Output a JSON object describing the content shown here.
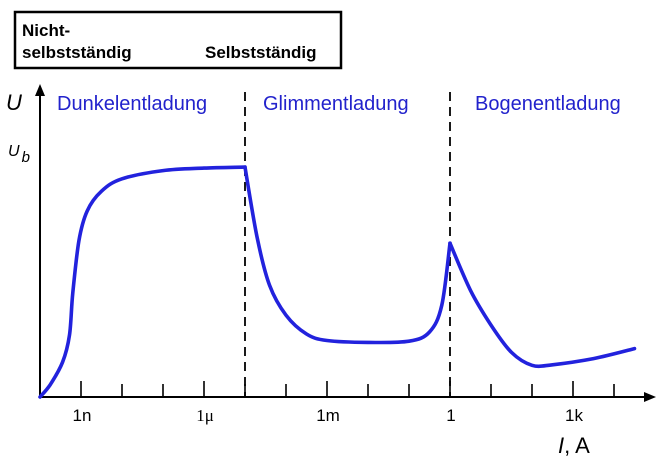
{
  "legend_box": {
    "line1": "Nicht-",
    "line2_left": "selbstständig",
    "line2_right": "Selbstständig"
  },
  "chart_data": {
    "type": "line",
    "title": "",
    "ylabel": "U",
    "xlabel_var": "I",
    "xlabel_unit": ", A",
    "y_marker_label": "U",
    "y_marker_sub": "b",
    "x_scale": "log",
    "x_tick_labels": [
      {
        "value": 1e-09,
        "label": "1n"
      },
      {
        "value": 1e-06,
        "label": "1μ"
      },
      {
        "value": 0.001,
        "label": "1m"
      },
      {
        "value": 1,
        "label": "1"
      },
      {
        "value": 1000,
        "label": "1k"
      }
    ],
    "regions": [
      {
        "label": "Dunkelentladung"
      },
      {
        "label": "Glimmentladung"
      },
      {
        "label": "Bogenentladung"
      }
    ],
    "boundaries": [
      1e-05,
      1
    ],
    "series": [
      {
        "color": "#2222dd",
        "points": [
          [
            0,
            0
          ],
          [
            0.25,
            0.05
          ],
          [
            0.55,
            0.14
          ],
          [
            0.72,
            0.25
          ],
          [
            0.8,
            0.42
          ],
          [
            0.95,
            0.63
          ],
          [
            1.15,
            0.75
          ],
          [
            1.5,
            0.83
          ],
          [
            2.0,
            0.88
          ],
          [
            3.0,
            0.913
          ],
          [
            4.0,
            0.923
          ],
          [
            5.0,
            0.927
          ]
        ]
      },
      {
        "color": "#2222dd",
        "points": [
          [
            5.0,
            0.927
          ],
          [
            5.3,
            0.64
          ],
          [
            5.6,
            0.45
          ],
          [
            6.0,
            0.33
          ],
          [
            6.5,
            0.254
          ],
          [
            7.0,
            0.228
          ],
          [
            8.0,
            0.22
          ],
          [
            9.0,
            0.225
          ],
          [
            9.5,
            0.262
          ],
          [
            9.8,
            0.37
          ],
          [
            10.0,
            0.62
          ]
        ]
      },
      {
        "color": "#2222dd",
        "points": [
          [
            10.0,
            0.62
          ],
          [
            10.5,
            0.43
          ],
          [
            11.0,
            0.29
          ],
          [
            11.5,
            0.18
          ],
          [
            12.0,
            0.128
          ],
          [
            12.5,
            0.13
          ],
          [
            13.5,
            0.155
          ],
          [
            14.5,
            0.195
          ]
        ]
      }
    ]
  }
}
